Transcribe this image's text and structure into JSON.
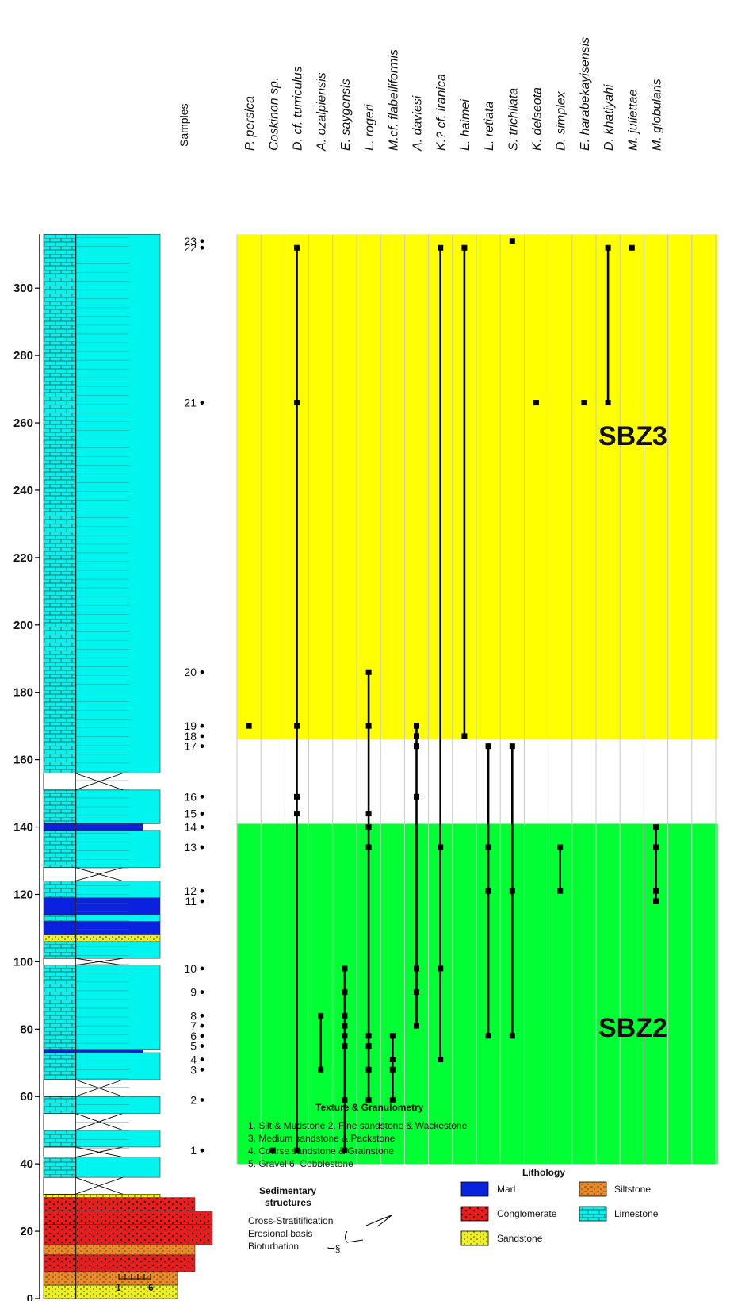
{
  "header": {
    "samples_label": "Samples"
  },
  "taxa": [
    "P. persica",
    "Coskinon sp.",
    "D. cf. turriculus",
    "A. ozalpiensis",
    "E. saygensis",
    "L. rogeri",
    "M.cf. flabelliformis",
    "A. daviesi",
    "K.? cf. iranica",
    "L. haimei",
    "L. retiata",
    "S. trichilata",
    "K. delseota",
    "D. simplex",
    "E. harabekayisensis",
    "D. khatiyahi",
    "M. juliettae",
    "M. globularis"
  ],
  "depth_axis": {
    "min": 0,
    "max": 316,
    "labels": [
      "0",
      "20",
      "40",
      "60",
      "80",
      "100",
      "120",
      "140",
      "160",
      "180",
      "200",
      "220",
      "240",
      "260",
      "280",
      "300"
    ]
  },
  "samples": [
    {
      "id": "1",
      "depth": 44
    },
    {
      "id": "2",
      "depth": 59
    },
    {
      "id": "3",
      "depth": 68
    },
    {
      "id": "4",
      "depth": 71
    },
    {
      "id": "5",
      "depth": 75
    },
    {
      "id": "6",
      "depth": 78
    },
    {
      "id": "7",
      "depth": 81
    },
    {
      "id": "8",
      "depth": 84
    },
    {
      "id": "9",
      "depth": 91
    },
    {
      "id": "10",
      "depth": 98
    },
    {
      "id": "11",
      "depth": 118
    },
    {
      "id": "12",
      "depth": 121
    },
    {
      "id": "13",
      "depth": 134
    },
    {
      "id": "14",
      "depth": 140
    },
    {
      "id": "15",
      "depth": 144
    },
    {
      "id": "16",
      "depth": 149
    },
    {
      "id": "17",
      "depth": 164
    },
    {
      "id": "18",
      "depth": 167
    },
    {
      "id": "19",
      "depth": 170
    },
    {
      "id": "20",
      "depth": 186
    },
    {
      "id": "21",
      "depth": 266
    },
    {
      "id": "22",
      "depth": 312
    },
    {
      "id": "23",
      "depth": 314
    }
  ],
  "zones": [
    {
      "label": "SBZ2",
      "from": 40,
      "to": 141,
      "color": "#00ff33"
    },
    {
      "label": "",
      "from": 141,
      "to": 166,
      "color": "#ffffff"
    },
    {
      "label": "SBZ3",
      "from": 166,
      "to": 316,
      "color": "#ffff00"
    }
  ],
  "ranges": [
    {
      "taxon": 0,
      "samples": [
        "19"
      ]
    },
    {
      "taxon": 1,
      "samples": [
        "1"
      ]
    },
    {
      "taxon": 2,
      "samples": [
        "1",
        "15",
        "16",
        "19",
        "21",
        "22"
      ]
    },
    {
      "taxon": 3,
      "samples": [
        "3",
        "8"
      ]
    },
    {
      "taxon": 4,
      "samples": [
        "1",
        "2",
        "5",
        "6",
        "7",
        "8",
        "9",
        "10"
      ]
    },
    {
      "taxon": 5,
      "samples": [
        "2",
        "3",
        "5",
        "6",
        "13",
        "14",
        "15",
        "19",
        "20"
      ]
    },
    {
      "taxon": 6,
      "samples": [
        "2",
        "3",
        "4",
        "6"
      ]
    },
    {
      "taxon": 7,
      "samples": [
        "7",
        "9",
        "10",
        "16",
        "17",
        "18",
        "19"
      ]
    },
    {
      "taxon": 8,
      "samples": [
        "4",
        "10",
        "13",
        "22"
      ]
    },
    {
      "taxon": 9,
      "samples": [
        "18",
        "22"
      ]
    },
    {
      "taxon": 10,
      "samples": [
        "6",
        "12",
        "13",
        "17"
      ]
    },
    {
      "taxon": 11,
      "samples": [
        "6",
        "12",
        "17"
      ]
    },
    {
      "taxon": 11,
      "samples": [
        "23"
      ]
    },
    {
      "taxon": 12,
      "samples": [
        "21"
      ]
    },
    {
      "taxon": 13,
      "samples": [
        "12",
        "13"
      ]
    },
    {
      "taxon": 14,
      "samples": [
        "21"
      ]
    },
    {
      "taxon": 15,
      "samples": [
        "21",
        "22"
      ]
    },
    {
      "taxon": 16,
      "samples": [
        "22"
      ]
    },
    {
      "taxon": 17,
      "samples": [
        "11",
        "12",
        "13",
        "14"
      ]
    }
  ],
  "legend": {
    "texture_title": "Texture & Granulometry",
    "texture_lines": [
      "1. Silt & Mudstone 2. Fine sandstone & Wackestone",
      "3. Medium sandstone & Packstone",
      "4. Coarse sandstone & Grainstone",
      "5. Gravel 6. Cobblestone"
    ],
    "sed_title_1": "Sedimentary",
    "sed_title_2": "structures",
    "sed_items": [
      "Cross-Stratitification",
      "Erosional basis",
      "Bioturbation"
    ],
    "lithology_title": "Lithology",
    "lithology_items": [
      {
        "label": "Marl",
        "color": "#0b21e0"
      },
      {
        "label": "Siltstone",
        "color": "#e88a2a"
      },
      {
        "label": "Conglomerate",
        "color": "#ee1b1b"
      },
      {
        "label": "Limestone",
        "color": "#00f5ee"
      },
      {
        "label": "Sandstone",
        "color": "#eef21a"
      }
    ]
  },
  "texture_scale": {
    "min_label": "1",
    "max_label": "6"
  },
  "colors": {
    "limestone": "#00f5ee",
    "marl": "#0b21e0",
    "conglomerate": "#ee1b1b",
    "sandstone": "#eef21a",
    "siltstone": "#e88a2a"
  }
}
